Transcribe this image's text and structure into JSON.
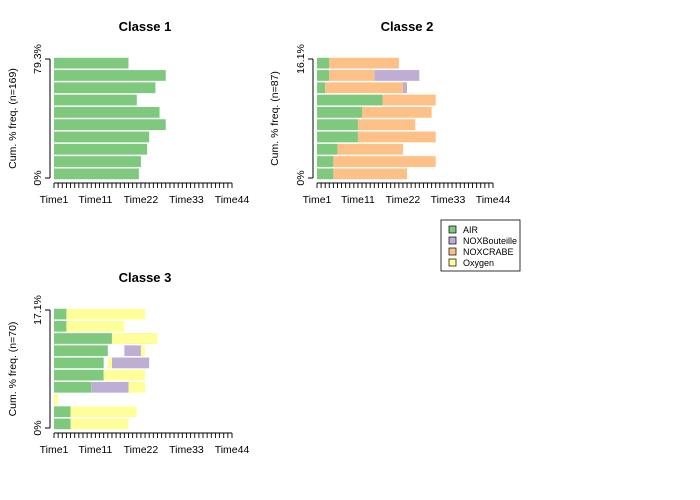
{
  "legend": {
    "items": [
      {
        "label": "AIR",
        "color": "#7fc97f"
      },
      {
        "label": "NOXBouteille",
        "color": "#beaed4"
      },
      {
        "label": "NOXCRABE",
        "color": "#fdc086"
      },
      {
        "label": "Oxygen",
        "color": "#ffff99"
      }
    ]
  },
  "chart_data": [
    {
      "type": "bar",
      "orientation": "horizontal",
      "stacked": true,
      "title": "Classe 1",
      "ylabel": "Cum. % freq. (n=169)",
      "y_ticks": [
        "0%",
        "79.3%"
      ],
      "x_ticks": [
        "Time1",
        "Time11",
        "Time22",
        "Time33",
        "Time44"
      ],
      "x_tick_values": [
        1,
        11,
        22,
        33,
        44
      ],
      "xlim": [
        1,
        44
      ],
      "series": [
        {
          "name": "AIR",
          "color": "#7fc97f",
          "segments": [
            [
              1,
              21.5
            ],
            [
              1,
              22
            ],
            [
              1,
              23.5
            ],
            [
              1,
              24
            ],
            [
              1,
              28
            ],
            [
              1,
              26.5
            ],
            [
              1,
              21
            ],
            [
              1,
              25.5
            ],
            [
              1,
              28
            ],
            [
              1,
              19
            ]
          ]
        }
      ]
    },
    {
      "type": "bar",
      "orientation": "horizontal",
      "stacked": true,
      "title": "Classe 2",
      "ylabel": "Cum. % freq. (n=87)",
      "y_ticks": [
        "0%",
        "16.1%"
      ],
      "x_ticks": [
        "Time1",
        "Time11",
        "Time22",
        "Time33",
        "Time44"
      ],
      "x_tick_values": [
        1,
        11,
        22,
        33,
        44
      ],
      "xlim": [
        1,
        44
      ],
      "series": [
        {
          "name": "AIR",
          "color": "#7fc97f",
          "segments": [
            [
              1,
              5
            ],
            [
              1,
              5
            ],
            [
              1,
              6
            ],
            [
              1,
              11
            ],
            [
              1,
              11
            ],
            [
              1,
              12
            ],
            [
              1,
              17
            ],
            [
              1,
              3
            ],
            [
              1,
              4
            ],
            [
              1,
              4
            ]
          ]
        },
        {
          "name": "NOXBouteille",
          "color": "#beaed4",
          "segments": [
            [
              0,
              0
            ],
            [
              0,
              0
            ],
            [
              0,
              0
            ],
            [
              0,
              0
            ],
            [
              0,
              0
            ],
            [
              0,
              0
            ],
            [
              0,
              0
            ],
            [
              22,
              23
            ],
            [
              15,
              26
            ],
            [
              0,
              0
            ]
          ]
        },
        {
          "name": "NOXCRABE",
          "color": "#fdc086",
          "segments": [
            [
              5,
              23
            ],
            [
              5,
              30
            ],
            [
              6,
              22
            ],
            [
              11,
              30
            ],
            [
              11,
              25
            ],
            [
              12,
              29
            ],
            [
              17,
              30
            ],
            [
              3,
              22
            ],
            [
              4,
              15
            ],
            [
              4,
              21
            ]
          ]
        },
        {
          "name": "Oxygen",
          "color": "#ffff99",
          "segments": [
            [
              0,
              0
            ],
            [
              0,
              0
            ],
            [
              0,
              0
            ],
            [
              0,
              0
            ],
            [
              0,
              0
            ],
            [
              0,
              0
            ],
            [
              0,
              0
            ],
            [
              0,
              0
            ],
            [
              0,
              0
            ],
            [
              0,
              0
            ]
          ]
        }
      ]
    },
    {
      "type": "bar",
      "orientation": "horizontal",
      "stacked": true,
      "title": "Classe 3",
      "ylabel": "Cum. % freq. (n=70)",
      "y_ticks": [
        "0%",
        "17.1%"
      ],
      "x_ticks": [
        "Time1",
        "Time11",
        "Time22",
        "Time33",
        "Time44"
      ],
      "x_tick_values": [
        1,
        11,
        22,
        33,
        44
      ],
      "xlim": [
        1,
        44
      ],
      "series": [
        {
          "name": "AIR",
          "color": "#7fc97f",
          "segments": [
            [
              1,
              5
            ],
            [
              1,
              5
            ],
            [
              0,
              0
            ],
            [
              1,
              10
            ],
            [
              1,
              13
            ],
            [
              1,
              13
            ],
            [
              1,
              14
            ],
            [
              1,
              15
            ],
            [
              1,
              4
            ],
            [
              1,
              4
            ]
          ]
        },
        {
          "name": "NOXBouteille",
          "color": "#beaed4",
          "segments": [
            [
              0,
              0
            ],
            [
              0,
              0
            ],
            [
              0,
              0
            ],
            [
              10,
              19
            ],
            [
              0,
              0
            ],
            [
              15,
              24
            ],
            [
              18,
              22
            ],
            [
              18,
              25
            ],
            [
              0,
              0
            ],
            [
              0,
              0
            ]
          ]
        },
        {
          "name": "NOXCRABE",
          "color": "#fdc086",
          "segments": [
            [
              0,
              0
            ],
            [
              0,
              0
            ],
            [
              0,
              0
            ],
            [
              0,
              0
            ],
            [
              0,
              0
            ],
            [
              0,
              0
            ],
            [
              0,
              0
            ],
            [
              0,
              0
            ],
            [
              0,
              0
            ],
            [
              0,
              0
            ]
          ]
        },
        {
          "name": "Oxygen",
          "color": "#ffff99",
          "segments": [
            [
              5,
              19
            ],
            [
              5,
              21
            ],
            [
              1,
              2
            ],
            [
              19,
              23
            ],
            [
              13,
              23
            ],
            [
              14,
              15
            ],
            [
              22,
              23
            ],
            [
              15,
              26
            ],
            [
              4,
              18
            ],
            [
              4,
              23
            ]
          ]
        }
      ]
    }
  ]
}
